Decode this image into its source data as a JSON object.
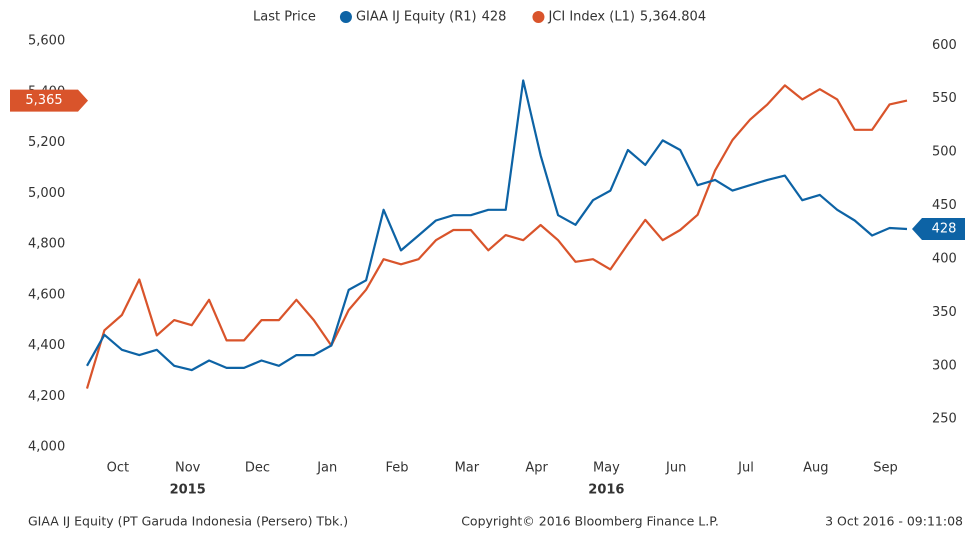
{
  "chart_data": {
    "type": "line",
    "legend_title": "Last Price",
    "categories": [
      null,
      null,
      "Oct",
      null,
      null,
      null,
      "Nov",
      null,
      null,
      null,
      "Dec",
      null,
      null,
      null,
      "Jan",
      null,
      null,
      null,
      "Feb",
      null,
      null,
      null,
      "Mar",
      null,
      null,
      null,
      "Apr",
      null,
      null,
      null,
      "May",
      null,
      null,
      null,
      "Jun",
      null,
      null,
      null,
      "Jul",
      null,
      null,
      null,
      "Aug",
      null,
      null,
      null,
      "Sep",
      null
    ],
    "category_years": [
      null,
      null,
      null,
      null,
      null,
      null,
      "2015",
      null,
      null,
      null,
      null,
      null,
      null,
      null,
      null,
      null,
      null,
      null,
      null,
      null,
      null,
      null,
      null,
      null,
      null,
      null,
      null,
      null,
      null,
      null,
      "2016",
      null,
      null,
      null,
      null,
      null,
      null,
      null,
      null,
      null,
      null,
      null,
      null,
      null,
      null,
      null,
      null,
      null
    ],
    "ylim": [
      4000,
      5600
    ],
    "yticks": [
      {
        "value": 4000,
        "label": "4,000"
      },
      {
        "value": 4200,
        "label": "4,200"
      },
      {
        "value": 4400,
        "label": "4,400"
      },
      {
        "value": 4600,
        "label": "4,600"
      },
      {
        "value": 4800,
        "label": "4,800"
      },
      {
        "value": 5000,
        "label": "5,000"
      },
      {
        "value": 5200,
        "label": "5,200"
      },
      {
        "value": 5400,
        "label": "5,400"
      },
      {
        "value": 5600,
        "label": "5,600"
      }
    ],
    "y2lim": [
      224,
      604
    ],
    "y2ticks": [
      250,
      300,
      350,
      400,
      450,
      500,
      550,
      600
    ],
    "series": [
      {
        "name": "GIAA IJ Equity (R1)",
        "axis": "y2",
        "color": "#0d63a5",
        "last_value": 428,
        "values": [
          300,
          329,
          315,
          310,
          315,
          300,
          296,
          305,
          298,
          298,
          305,
          300,
          310,
          310,
          319,
          371,
          380,
          446,
          408,
          422,
          436,
          441,
          441,
          446,
          446,
          567,
          497,
          441,
          432,
          455,
          464,
          502,
          488,
          511,
          502,
          469,
          474,
          464,
          469,
          474,
          478,
          455,
          460,
          446,
          436,
          422,
          429,
          428
        ]
      },
      {
        "name": "JCI Index (L1)",
        "axis": "y",
        "color": "#d9542b",
        "last_value": 5364.804,
        "last_value_label": "5,364.804",
        "flag_label": "5,365",
        "values": [
          4230,
          4460,
          4520,
          4660,
          4440,
          4500,
          4480,
          4580,
          4420,
          4420,
          4500,
          4500,
          4580,
          4500,
          4400,
          4540,
          4620,
          4740,
          4720,
          4740,
          4815,
          4855,
          4855,
          4775,
          4835,
          4815,
          4875,
          4815,
          4730,
          4740,
          4700,
          4800,
          4895,
          4815,
          4855,
          4915,
          5090,
          5210,
          5290,
          5350,
          5425,
          5370,
          5410,
          5370,
          5250,
          5250,
          5350,
          5365
        ]
      }
    ]
  },
  "footer": {
    "left": "GIAA IJ Equity (PT Garuda Indonesia (Persero) Tbk.)",
    "center": "Copyright© 2016 Bloomberg Finance L.P.",
    "right": "3 Oct 2016 - 09:11:08"
  }
}
